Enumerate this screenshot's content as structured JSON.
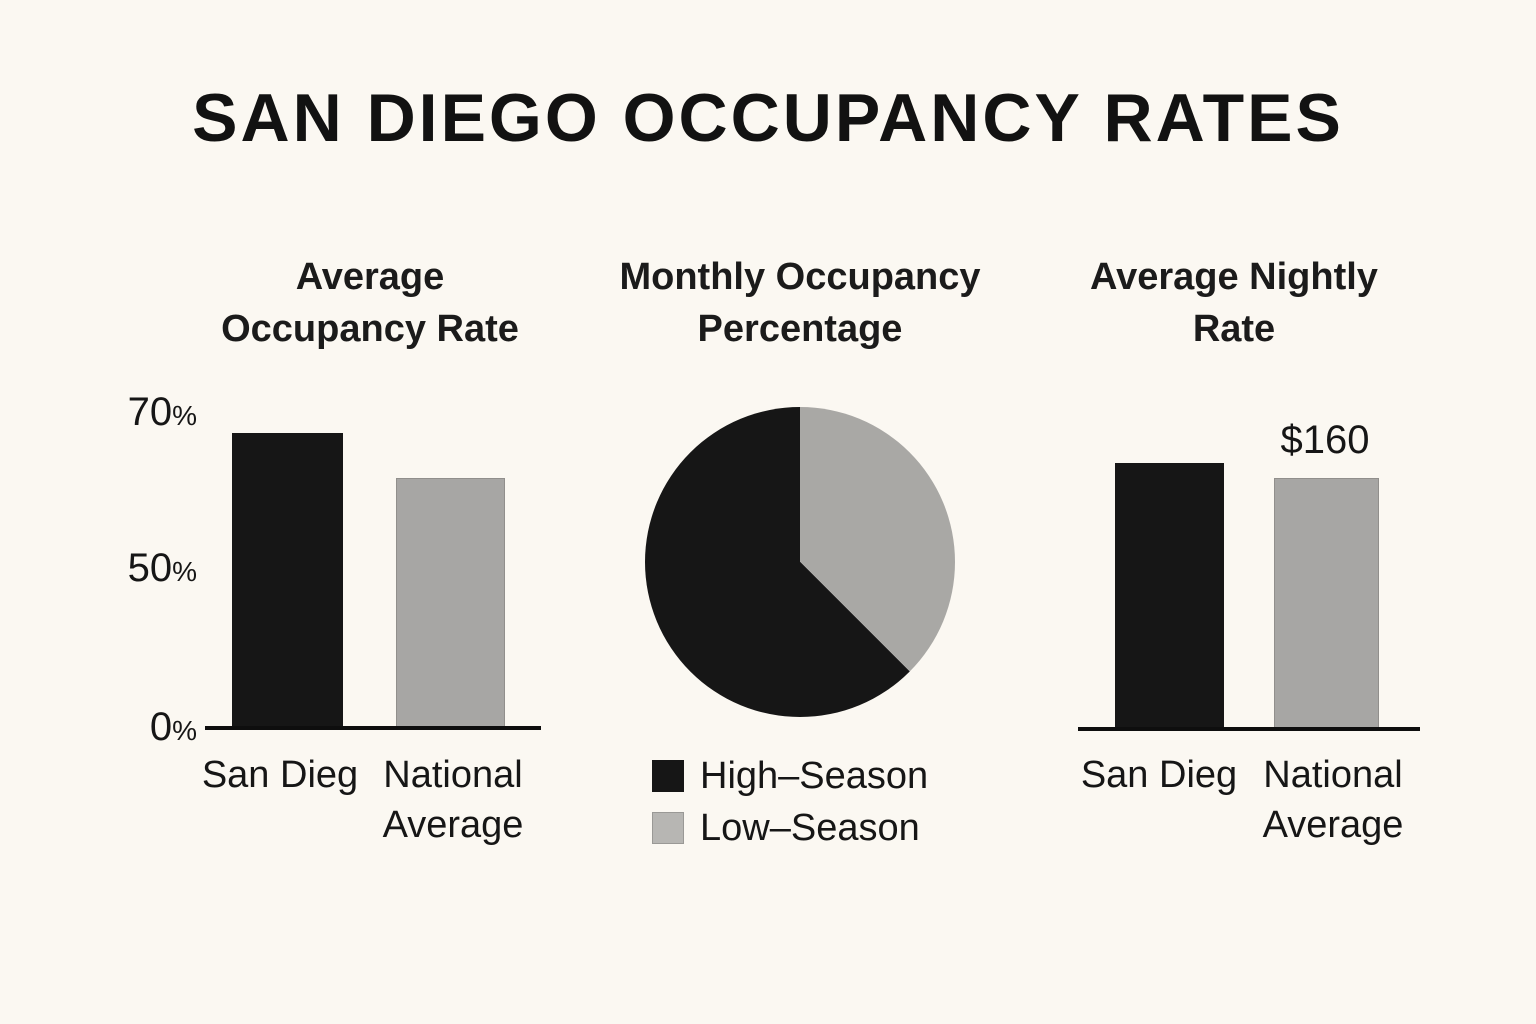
{
  "page_title": "SAN DIEGO OCCUPANCY RATES",
  "colors": {
    "background": "#FBF8F2",
    "ink": "#161616",
    "bar_black": "#161616",
    "bar_gray": "#a7a6a4",
    "pie_black": "#161616",
    "pie_gray": "#a9a8a5",
    "legend_gray": "#b7b6b3"
  },
  "chart_data": [
    {
      "type": "bar",
      "title": "Average Occupancy Rate",
      "categories": [
        "San Dieg",
        "National Average"
      ],
      "values": [
        66,
        56
      ],
      "unit": "%",
      "ylim": [
        0,
        70
      ],
      "grid": false,
      "y_ticks": [
        {
          "num": "70",
          "sym": "%"
        },
        {
          "num": "50",
          "sym": "%"
        },
        {
          "num": "0",
          "sym": "%"
        }
      ],
      "bar_colors": [
        "#161616",
        "#a7a6a4"
      ]
    },
    {
      "type": "pie",
      "title": "Monthly Occupancy Percentage",
      "slices": [
        {
          "label": "Low–Season",
          "value": 37.5,
          "color": "#a9a8a5"
        },
        {
          "label": "High–Season",
          "value": 62.5,
          "color": "#161616"
        }
      ],
      "legend": [
        {
          "label": "High–Season",
          "color": "#161616"
        },
        {
          "label": "Low–Season",
          "color": "#b7b6b3"
        }
      ],
      "legend_position": "bottom-left",
      "start_angle_deg": 0,
      "direction": "clockwise"
    },
    {
      "type": "bar",
      "title": "Average Nightly Rate",
      "categories": [
        "San Dieg",
        "National Average"
      ],
      "values": [
        170,
        160
      ],
      "unit": "$",
      "ylim": [
        0,
        180
      ],
      "grid": false,
      "annotations": [
        {
          "text": "$160",
          "target": "National Average"
        }
      ],
      "bar_colors": [
        "#161616",
        "#a7a6a4"
      ]
    }
  ]
}
